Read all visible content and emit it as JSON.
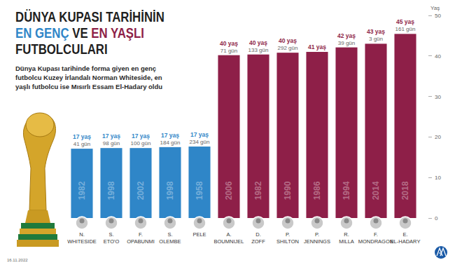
{
  "chart_data": {
    "type": "bar",
    "title": "DÜNYA KUPASI TARİHİNİN EN GENÇ VE EN YAŞLI FUTBOLCULARI",
    "subtitle": "Dünya Kupası tarihinde forma giyen en genç futbolcu Kuzey İrlandalı Norman Whiteside, en yaşlı futbolcu ise Mısırlı Essam El-Hadary oldu",
    "date": "16.11.2022",
    "y_label": "Yaş",
    "categories": [
      "N. WHITESIDE",
      "S. ETO'O",
      "F. OPABUNMI",
      "S. OLEMBE",
      "PELE",
      "A. BOUMNIJEL",
      "D. ZOFF",
      "P. SHILTON",
      "P. JENNINGS",
      "R. MILLA",
      "F. MONDRAGON",
      "E. EL-HADARY"
    ],
    "values": [
      17.11,
      17.27,
      17.27,
      17.5,
      17.64,
      40.19,
      40.36,
      40.8,
      41,
      42.11,
      43.01,
      45.44
    ],
    "value_labels": [
      "17 yaş 41 gün",
      "17 yaş 98 gün",
      "17 yaş 100 gün",
      "17 yaş 184 gün",
      "17 yaş 234 gün",
      "40 yaş 71 gün",
      "40 yaş 133 gün",
      "40 yaş 292 gün",
      "41 yaş",
      "42 yaş 39 gün",
      "43 yaş 3 gün",
      "45 yaş 161 gün"
    ],
    "years": [
      "1982",
      "1998",
      "2002",
      "1998",
      "1958",
      "2006",
      "1982",
      "1990",
      "1986",
      "1994",
      "2014",
      "2018"
    ],
    "colors": [
      "#2f86c8",
      "#2f86c8",
      "#2f86c8",
      "#2f86c8",
      "#2f86c8",
      "#8e1f48",
      "#8e1f48",
      "#8e1f48",
      "#8e1f48",
      "#8e1f48",
      "#8e1f48",
      "#8e1f48"
    ],
    "ylim": [
      0,
      50
    ],
    "yticks": [
      0,
      10,
      20,
      30,
      40,
      50
    ],
    "grid": false,
    "data_labels": true
  }
}
